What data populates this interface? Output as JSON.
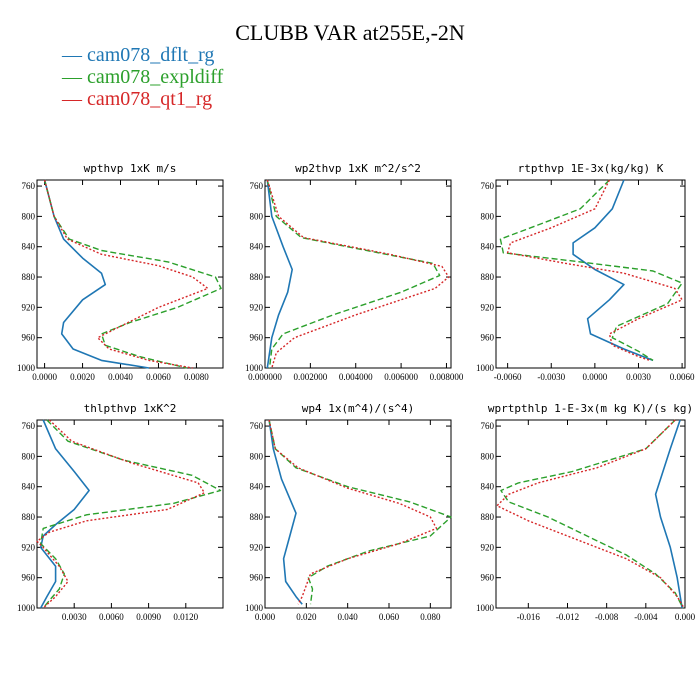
{
  "title": "CLUBB VAR at255E,-2N",
  "legend": [
    {
      "name": "cam078_dflt_rg",
      "color": "#1f77b4"
    },
    {
      "name": "cam078_expldiff",
      "color": "#2ca02c"
    },
    {
      "name": "cam078_qt1_rg",
      "color": "#d62728"
    }
  ],
  "chart_data": [
    {
      "type": "line",
      "title": "wpthvp   1xK m/s",
      "xlim": [
        -0.0004,
        0.0094
      ],
      "ylim": [
        1000,
        752
      ],
      "xticks": [
        0.0,
        0.002,
        0.004,
        0.006,
        0.008
      ],
      "xtick_labels": [
        "0.0000",
        "0.0020",
        "0.0040",
        "0.0060",
        "0.0080"
      ],
      "yticks": [
        760,
        800,
        840,
        880,
        920,
        960,
        1000
      ],
      "series": [
        {
          "name": "cam078_dflt_rg",
          "points": [
            [
              0,
              752
            ],
            [
              0.0005,
              800
            ],
            [
              0.001,
              830
            ],
            [
              0.002,
              855
            ],
            [
              0.003,
              875
            ],
            [
              0.0032,
              890
            ],
            [
              0.002,
              910
            ],
            [
              0.001,
              940
            ],
            [
              0.0009,
              955
            ],
            [
              0.0015,
              975
            ],
            [
              0.003,
              990
            ],
            [
              0.0055,
              1000
            ]
          ]
        },
        {
          "name": "cam078_expldiff",
          "points": [
            [
              0,
              752
            ],
            [
              0.0005,
              800
            ],
            [
              0.0013,
              830
            ],
            [
              0.003,
              845
            ],
            [
              0.0065,
              860
            ],
            [
              0.009,
              880
            ],
            [
              0.0093,
              895
            ],
            [
              0.007,
              920
            ],
            [
              0.0045,
              940
            ],
            [
              0.003,
              955
            ],
            [
              0.0032,
              970
            ],
            [
              0.005,
              985
            ],
            [
              0.0075,
              1000
            ]
          ]
        },
        {
          "name": "cam078_qt1_rg",
          "points": [
            [
              0,
              752
            ],
            [
              0.0005,
              800
            ],
            [
              0.0012,
              830
            ],
            [
              0.003,
              850
            ],
            [
              0.006,
              865
            ],
            [
              0.0078,
              880
            ],
            [
              0.0086,
              895
            ],
            [
              0.006,
              920
            ],
            [
              0.004,
              945
            ],
            [
              0.0028,
              960
            ],
            [
              0.0034,
              975
            ],
            [
              0.0055,
              990
            ],
            [
              0.0078,
              1000
            ]
          ]
        }
      ]
    },
    {
      "type": "line",
      "title": "wp2thvp   1xK m^2/s^2",
      "xlim": [
        0,
        0.0082
      ],
      "ylim": [
        1000,
        752
      ],
      "xticks": [
        0.0,
        0.002,
        0.004,
        0.006,
        0.008
      ],
      "xtick_labels": [
        "0.000000",
        "0.002000",
        "0.004000",
        "0.006000",
        "0.008000"
      ],
      "yticks": [
        760,
        800,
        840,
        880,
        920,
        960,
        1000
      ],
      "series": [
        {
          "name": "cam078_dflt_rg",
          "points": [
            [
              0.0001,
              752
            ],
            [
              0.0003,
              800
            ],
            [
              0.0008,
              840
            ],
            [
              0.0012,
              870
            ],
            [
              0.001,
              900
            ],
            [
              0.0006,
              930
            ],
            [
              0.0003,
              960
            ],
            [
              0.0001,
              1000
            ]
          ]
        },
        {
          "name": "cam078_expldiff",
          "points": [
            [
              0.0001,
              752
            ],
            [
              0.0005,
              800
            ],
            [
              0.0016,
              828
            ],
            [
              0.005,
              848
            ],
            [
              0.0074,
              862
            ],
            [
              0.0077,
              878
            ],
            [
              0.006,
              900
            ],
            [
              0.003,
              930
            ],
            [
              0.0008,
              955
            ],
            [
              0.0003,
              975
            ],
            [
              0.0002,
              1000
            ]
          ]
        },
        {
          "name": "cam078_qt1_rg",
          "points": [
            [
              0.0001,
              752
            ],
            [
              0.0006,
              800
            ],
            [
              0.0017,
              828
            ],
            [
              0.0055,
              850
            ],
            [
              0.0078,
              866
            ],
            [
              0.0081,
              880
            ],
            [
              0.0075,
              895
            ],
            [
              0.004,
              930
            ],
            [
              0.0013,
              960
            ],
            [
              0.0005,
              980
            ],
            [
              0.0003,
              1000
            ]
          ]
        }
      ]
    },
    {
      "type": "line",
      "title": "rtpthvp   1E-3x(kg/kg) K",
      "xlim": [
        -0.0068,
        0.0062
      ],
      "ylim": [
        1000,
        752
      ],
      "xticks": [
        -0.006,
        -0.003,
        0.0,
        0.003,
        0.006
      ],
      "xtick_labels": [
        "-0.0060",
        "-0.0030",
        "0.0000",
        "0.0030",
        "0.0060"
      ],
      "yticks": [
        760,
        800,
        840,
        880,
        920,
        960,
        1000
      ],
      "series": [
        {
          "name": "cam078_dflt_rg",
          "points": [
            [
              0.002,
              752
            ],
            [
              0.0012,
              790
            ],
            [
              0,
              815
            ],
            [
              -0.0015,
              835
            ],
            [
              -0.0015,
              850
            ],
            [
              0,
              870
            ],
            [
              0.002,
              890
            ],
            [
              0.001,
              910
            ],
            [
              -0.0005,
              935
            ],
            [
              -0.0003,
              955
            ],
            [
              0.002,
              975
            ],
            [
              0.004,
              990
            ]
          ]
        },
        {
          "name": "cam078_expldiff",
          "points": [
            [
              0.001,
              752
            ],
            [
              -0.001,
              790
            ],
            [
              -0.004,
              812
            ],
            [
              -0.0065,
              830
            ],
            [
              -0.0063,
              848
            ],
            [
              -0.001,
              860
            ],
            [
              0.004,
              872
            ],
            [
              0.006,
              888
            ],
            [
              0.005,
              915
            ],
            [
              0.0015,
              945
            ],
            [
              0.0012,
              960
            ],
            [
              0.003,
              978
            ],
            [
              0.004,
              990
            ]
          ]
        },
        {
          "name": "cam078_qt1_rg",
          "points": [
            [
              0.001,
              752
            ],
            [
              0,
              790
            ],
            [
              -0.003,
              815
            ],
            [
              -0.0058,
              835
            ],
            [
              -0.006,
              848
            ],
            [
              -0.002,
              862
            ],
            [
              0.002,
              875
            ],
            [
              0.0055,
              895
            ],
            [
              0.006,
              910
            ],
            [
              0.003,
              935
            ],
            [
              0.001,
              955
            ],
            [
              0.0012,
              970
            ],
            [
              0.003,
              985
            ],
            [
              0.0038,
              990
            ]
          ]
        }
      ]
    },
    {
      "type": "line",
      "title": "thlpthvp   1xK^2",
      "xlim": [
        0,
        0.015
      ],
      "ylim": [
        1000,
        752
      ],
      "xticks": [
        0.003,
        0.006,
        0.009,
        0.012
      ],
      "xtick_labels": [
        "0.0030",
        "0.0060",
        "0.0090",
        "0.0120"
      ],
      "yticks": [
        760,
        800,
        840,
        880,
        920,
        960,
        1000
      ],
      "series": [
        {
          "name": "cam078_dflt_rg",
          "points": [
            [
              0.0005,
              752
            ],
            [
              0.0015,
              790
            ],
            [
              0.003,
              820
            ],
            [
              0.0042,
              845
            ],
            [
              0.003,
              870
            ],
            [
              0.0015,
              890
            ],
            [
              0.0005,
              905
            ],
            [
              0.0003,
              920
            ],
            [
              0.0015,
              945
            ],
            [
              0.0015,
              965
            ],
            [
              0.0008,
              985
            ],
            [
              0.0003,
              1000
            ]
          ]
        },
        {
          "name": "cam078_expldiff",
          "points": [
            [
              0.0008,
              752
            ],
            [
              0.0025,
              780
            ],
            [
              0.007,
              805
            ],
            [
              0.0125,
              825
            ],
            [
              0.0148,
              845
            ],
            [
              0.011,
              862
            ],
            [
              0.004,
              877
            ],
            [
              0.0005,
              895
            ],
            [
              0.0003,
              915
            ],
            [
              0.0015,
              935
            ],
            [
              0.0022,
              955
            ],
            [
              0.0018,
              975
            ],
            [
              0.001,
              990
            ],
            [
              0.0005,
              1000
            ]
          ]
        },
        {
          "name": "cam078_qt1_rg",
          "points": [
            [
              0.001,
              752
            ],
            [
              0.0028,
              780
            ],
            [
              0.0075,
              808
            ],
            [
              0.013,
              835
            ],
            [
              0.0135,
              848
            ],
            [
              0.0105,
              870
            ],
            [
              0.004,
              885
            ],
            [
              0.001,
              900
            ],
            [
              0,
              912
            ],
            [
              0.0005,
              920
            ],
            [
              0.0018,
              945
            ],
            [
              0.0025,
              965
            ],
            [
              0.0015,
              985
            ],
            [
              0.0005,
              1000
            ]
          ]
        }
      ]
    },
    {
      "type": "line",
      "title": "wp4   1x(m^4)/(s^4)",
      "xlim": [
        0,
        0.09
      ],
      "ylim": [
        1000,
        752
      ],
      "xticks": [
        0.0,
        0.02,
        0.04,
        0.06,
        0.08
      ],
      "xtick_labels": [
        "0.000",
        "0.020",
        "0.040",
        "0.060",
        "0.080"
      ],
      "yticks": [
        760,
        800,
        840,
        880,
        920,
        960,
        1000
      ],
      "series": [
        {
          "name": "cam078_dflt_rg",
          "points": [
            [
              0.002,
              752
            ],
            [
              0.004,
              790
            ],
            [
              0.008,
              830
            ],
            [
              0.015,
              875
            ],
            [
              0.012,
              905
            ],
            [
              0.009,
              935
            ],
            [
              0.01,
              965
            ],
            [
              0.015,
              985
            ],
            [
              0.018,
              995
            ]
          ]
        },
        {
          "name": "cam078_expldiff",
          "points": [
            [
              0.002,
              752
            ],
            [
              0.005,
              790
            ],
            [
              0.015,
              815
            ],
            [
              0.04,
              840
            ],
            [
              0.07,
              860
            ],
            [
              0.09,
              880
            ],
            [
              0.08,
              905
            ],
            [
              0.05,
              925
            ],
            [
              0.03,
              945
            ],
            [
              0.021,
              960
            ],
            [
              0.023,
              975
            ],
            [
              0.022,
              995
            ]
          ]
        },
        {
          "name": "cam078_qt1_rg",
          "points": [
            [
              0.002,
              752
            ],
            [
              0.005,
              790
            ],
            [
              0.016,
              815
            ],
            [
              0.04,
              842
            ],
            [
              0.065,
              862
            ],
            [
              0.08,
              880
            ],
            [
              0.083,
              895
            ],
            [
              0.065,
              915
            ],
            [
              0.04,
              935
            ],
            [
              0.022,
              955
            ],
            [
              0.02,
              970
            ],
            [
              0.018,
              985
            ],
            [
              0.016,
              995
            ]
          ]
        }
      ]
    },
    {
      "type": "line",
      "title": "wprtpthlp   1-E-3x(m kg K)/(s kg)",
      "xlim": [
        -0.0193,
        0
      ],
      "ylim": [
        1000,
        752
      ],
      "xticks": [
        -0.016,
        -0.012,
        -0.008,
        -0.004,
        0.0
      ],
      "xtick_labels": [
        "-0.016",
        "-0.012",
        "-0.008",
        "-0.004",
        "0.000"
      ],
      "yticks": [
        760,
        800,
        840,
        880,
        920,
        960,
        1000
      ],
      "series": [
        {
          "name": "cam078_dflt_rg",
          "points": [
            [
              -0.0005,
              752
            ],
            [
              -0.0015,
              790
            ],
            [
              -0.0025,
              830
            ],
            [
              -0.003,
              850
            ],
            [
              -0.0025,
              880
            ],
            [
              -0.0015,
              920
            ],
            [
              -0.0008,
              960
            ],
            [
              -0.0003,
              1000
            ]
          ]
        },
        {
          "name": "cam078_expldiff",
          "points": [
            [
              -0.001,
              752
            ],
            [
              -0.004,
              790
            ],
            [
              -0.0115,
              820
            ],
            [
              -0.017,
              835
            ],
            [
              -0.0188,
              845
            ],
            [
              -0.018,
              860
            ],
            [
              -0.014,
              880
            ],
            [
              -0.01,
              905
            ],
            [
              -0.006,
              930
            ],
            [
              -0.003,
              955
            ],
            [
              -0.001,
              980
            ],
            [
              -0.0002,
              1000
            ]
          ]
        },
        {
          "name": "cam078_qt1_rg",
          "points": [
            [
              -0.001,
              752
            ],
            [
              -0.004,
              790
            ],
            [
              -0.009,
              815
            ],
            [
              -0.015,
              835
            ],
            [
              -0.018,
              850
            ],
            [
              -0.0192,
              865
            ],
            [
              -0.016,
              885
            ],
            [
              -0.011,
              910
            ],
            [
              -0.006,
              935
            ],
            [
              -0.0025,
              960
            ],
            [
              -0.0008,
              985
            ],
            [
              -0.0001,
              1000
            ]
          ]
        }
      ]
    }
  ]
}
